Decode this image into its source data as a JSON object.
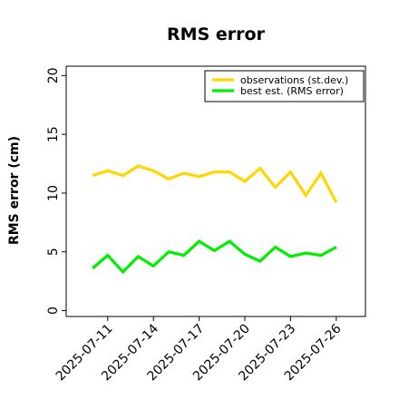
{
  "chart_data": {
    "type": "line",
    "title": "RMS error",
    "xlabel": "",
    "ylabel": "RMS error (cm)",
    "ylim": [
      -0.5,
      20.8
    ],
    "yticks": [
      0,
      5,
      10,
      15,
      20
    ],
    "grid": false,
    "legend_position": "top-right",
    "x": [
      "2025-07-10",
      "2025-07-11",
      "2025-07-12",
      "2025-07-13",
      "2025-07-14",
      "2025-07-15",
      "2025-07-16",
      "2025-07-17",
      "2025-07-18",
      "2025-07-19",
      "2025-07-20",
      "2025-07-21",
      "2025-07-22",
      "2025-07-23",
      "2025-07-24",
      "2025-07-25",
      "2025-07-26"
    ],
    "xtick_labels": [
      "2025-07-11",
      "2025-07-14",
      "2025-07-17",
      "2025-07-20",
      "2025-07-23",
      "2025-07-26"
    ],
    "xtick_highlight": "2025-07-17",
    "xtick_highlight_color": "#228b22",
    "series": [
      {
        "name": "observations (st.dev.)",
        "color": "#ffd700",
        "values": [
          11.5,
          11.9,
          11.5,
          12.3,
          11.9,
          11.2,
          11.7,
          11.4,
          11.8,
          11.8,
          11.0,
          12.1,
          10.5,
          11.8,
          9.8,
          11.7,
          9.2
        ]
      },
      {
        "name": "best est. (RMS error)",
        "color": "#00ee00",
        "values": [
          3.6,
          4.7,
          3.3,
          4.6,
          3.8,
          5.0,
          4.7,
          5.9,
          5.1,
          5.9,
          4.8,
          4.2,
          5.4,
          4.6,
          4.9,
          4.7,
          5.4
        ]
      }
    ]
  }
}
